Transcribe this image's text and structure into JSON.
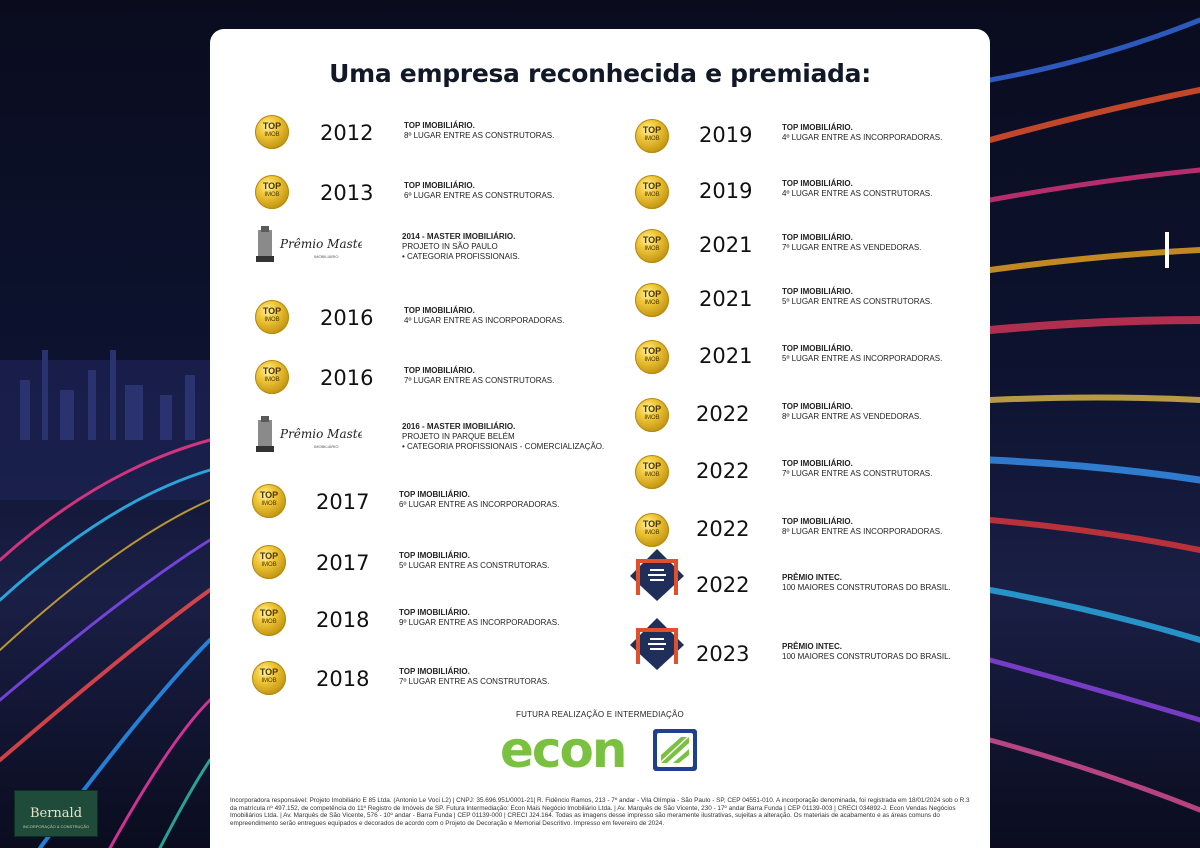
{
  "title": "Uma empresa reconhecida e premiada:",
  "medal_text": {
    "line1": "TOP",
    "line2": "IMOB"
  },
  "master_logo_text": {
    "main": "Prêmio Master",
    "sub": "IMOBILIÁRIO"
  },
  "awards_left": [
    {
      "year": "2012",
      "icon": "top-imobiliario-medal",
      "line1": "TOP IMOBILIÁRIO.",
      "line2": "8º LUGAR ENTRE AS CONSTRUTORAS.",
      "line3": ""
    },
    {
      "year": "2013",
      "icon": "top-imobiliario-medal",
      "line1": "TOP IMOBILIÁRIO.",
      "line2": "6º LUGAR ENTRE AS CONSTRUTORAS.",
      "line3": ""
    },
    {
      "year": "",
      "icon": "premio-master-logo",
      "line1": "2014 - MASTER IMOBILIÁRIO.",
      "line2": "PROJETO IN SÃO PAULO",
      "line3": "• CATEGORIA PROFISSIONAIS."
    },
    {
      "year": "2016",
      "icon": "top-imobiliario-medal",
      "line1": "TOP IMOBILIÁRIO.",
      "line2": "4º LUGAR ENTRE AS INCORPORADORAS.",
      "line3": ""
    },
    {
      "year": "2016",
      "icon": "top-imobiliario-medal",
      "line1": "TOP IMOBILIÁRIO.",
      "line2": "7º LUGAR ENTRE AS CONSTRUTORAS.",
      "line3": ""
    },
    {
      "year": "",
      "icon": "premio-master-logo",
      "line1": "2016 - MASTER IMOBILIÁRIO.",
      "line2": "PROJETO IN PARQUE BELÉM",
      "line3": "• CATEGORIA PROFISSIONAIS - COMERCIALIZAÇÃO."
    },
    {
      "year": "2017",
      "icon": "top-imobiliario-medal",
      "line1": "TOP IMOBILIÁRIO.",
      "line2": "6º LUGAR ENTRE AS INCORPORADORAS.",
      "line3": ""
    },
    {
      "year": "2017",
      "icon": "top-imobiliario-medal",
      "line1": "TOP IMOBILIÁRIO.",
      "line2": "5º LUGAR ENTRE AS CONSTRUTORAS.",
      "line3": ""
    },
    {
      "year": "2018",
      "icon": "top-imobiliario-medal",
      "line1": "TOP IMOBILIÁRIO.",
      "line2": "9º LUGAR ENTRE AS INCORPORADORAS.",
      "line3": ""
    },
    {
      "year": "2018",
      "icon": "top-imobiliario-medal",
      "line1": "TOP IMOBILIÁRIO.",
      "line2": "7º LUGAR ENTRE AS CONSTRUTORAS.",
      "line3": ""
    }
  ],
  "awards_right": [
    {
      "year": "2019",
      "icon": "top-imobiliario-medal",
      "line1": "TOP IMOBILIÁRIO.",
      "line2": "4º LUGAR ENTRE AS INCORPORADORAS."
    },
    {
      "year": "2019",
      "icon": "top-imobiliario-medal",
      "line1": "TOP IMOBILIÁRIO.",
      "line2": "4º LUGAR ENTRE AS CONSTRUTORAS."
    },
    {
      "year": "2021",
      "icon": "top-imobiliario-medal",
      "line1": "TOP IMOBILIÁRIO.",
      "line2": "7º LUGAR ENTRE AS VENDEDORAS."
    },
    {
      "year": "2021",
      "icon": "top-imobiliario-medal",
      "line1": "TOP IMOBILIÁRIO.",
      "line2": "5º LUGAR ENTRE AS CONSTRUTORAS."
    },
    {
      "year": "2021",
      "icon": "top-imobiliario-medal",
      "line1": "TOP IMOBILIÁRIO.",
      "line2": "5º LUGAR ENTRE AS INCORPORADORAS."
    },
    {
      "year": "2022",
      "icon": "top-imobiliario-medal",
      "line1": "TOP IMOBILIÁRIO.",
      "line2": "8º LUGAR ENTRE AS VENDEDORAS."
    },
    {
      "year": "2022",
      "icon": "top-imobiliario-medal",
      "line1": "TOP IMOBILIÁRIO.",
      "line2": "7º LUGAR ENTRE AS CONSTRUTORAS."
    },
    {
      "year": "2022",
      "icon": "top-imobiliario-medal",
      "line1": "TOP IMOBILIÁRIO.",
      "line2": "8º LUGAR ENTRE AS INCORPORADORAS."
    },
    {
      "year": "2022",
      "icon": "premio-intec-badge",
      "line1": "PRÊMIO INTEC.",
      "line2": "100 MAIORES CONSTRUTORAS DO BRASIL."
    },
    {
      "year": "2023",
      "icon": "premio-intec-badge",
      "line1": "PRÊMIO INTEC.",
      "line2": "100 MAIORES CONSTRUTORAS DO BRASIL."
    }
  ],
  "futura": "FUTURA REALIZAÇÃO E INTERMEDIAÇÃO",
  "brand": {
    "name": "econ",
    "green": "#7ac142",
    "blue": "#1f3f8f"
  },
  "legal": "Incorporadora responsável: Projeto Imobiliário E 85 Ltda. (Antonio Le Voci L2) | CNPJ: 35.696.951/0001-21| R. Fidêncio Ramos, 213 - 7º andar - Vila Olímpia - São Paulo - SP, CEP 04551-010. A incorporação denominada, foi registrada em 18/01/2024 sob o R.3 da matrícula nº 497.152, de competência do 11º Registro de Imóveis de SP. Futura Intermediação: Econ Mais Negócio Imobiliário Ltda. | Av. Marquês de São Vicente, 230 - 17º andar Barra Funda | CEP 01139-003 | CRECI 034892-J. Econ Vendas Negócios Imobiliários Ltda. | Av. Marquês de São Vicente, 576 - 10º andar - Barra Funda | CEP 01139-000 | CRECI J24.164. Todas as imagens desse impresso são meramente ilustrativas, sujeitas a alteração. Os materiais de acabamento e as áreas comuns do empreendimento serão entregues equipados e decorados de acordo com o Projeto de Decoração e Memorial Descritivo. Impresso em fevereiro de 2024.",
  "bernald": {
    "name": "Bernald",
    "tagline": "INCORPORAÇÃO & CONSTRUÇÃO"
  }
}
